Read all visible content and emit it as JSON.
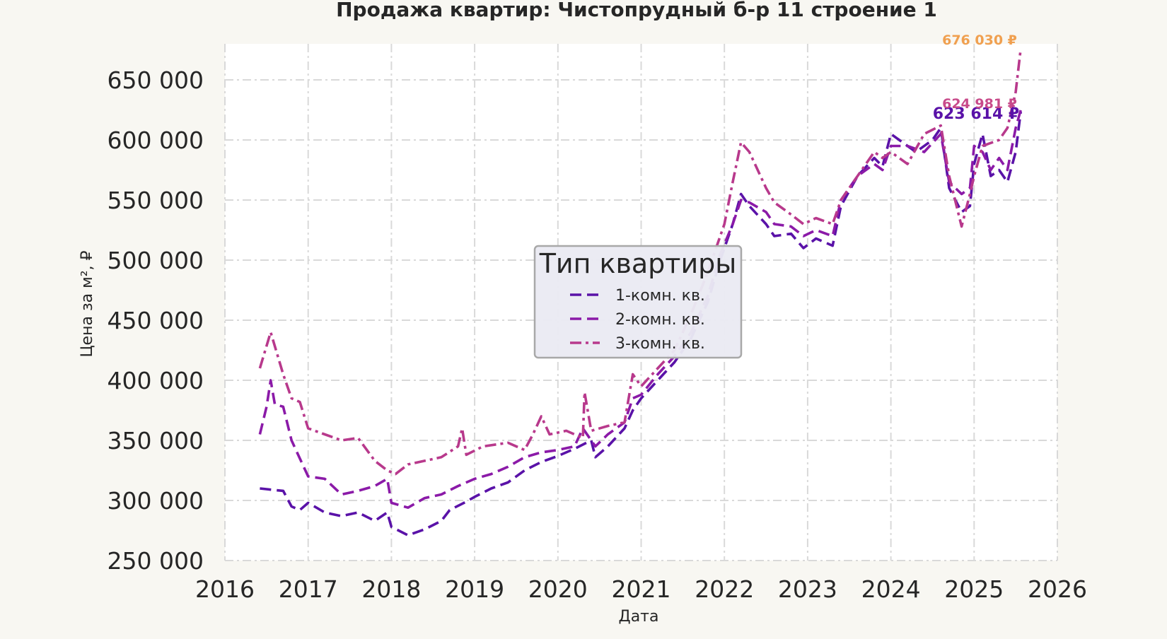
{
  "chart_data": {
    "type": "line",
    "title": "Продажа квартир: Чистопрудный б-р 11 строение 1",
    "xlabel": "Дата",
    "ylabel": "Цена за м², ₽",
    "xlim": [
      2016.0,
      2026.0
    ],
    "ylim": [
      250000,
      680000
    ],
    "x_ticks": [
      2016,
      2017,
      2018,
      2019,
      2020,
      2021,
      2022,
      2023,
      2024,
      2025,
      2026
    ],
    "x_tick_labels": [
      "2016",
      "2017",
      "2018",
      "2019",
      "2020",
      "2021",
      "2022",
      "2023",
      "2024",
      "2025",
      "2026"
    ],
    "y_ticks": [
      250000,
      300000,
      350000,
      400000,
      450000,
      500000,
      550000,
      600000,
      650000
    ],
    "y_tick_labels": [
      "250 000",
      "300 000",
      "350 000",
      "400 000",
      "450 000",
      "500 000",
      "550 000",
      "600 000",
      "650 000"
    ],
    "grid": true,
    "legend": {
      "title": "Тип квартиры",
      "placement": "center"
    },
    "series": [
      {
        "name": "1-комн. кв.",
        "color": "#5a12a8",
        "dash": "dashed",
        "end_label": "623 614 ₽",
        "points": [
          [
            2016.42,
            310000
          ],
          [
            2016.55,
            309000
          ],
          [
            2016.7,
            308000
          ],
          [
            2016.8,
            295000
          ],
          [
            2016.9,
            292000
          ],
          [
            2017.0,
            298000
          ],
          [
            2017.2,
            290000
          ],
          [
            2017.4,
            287000
          ],
          [
            2017.6,
            290000
          ],
          [
            2017.8,
            283000
          ],
          [
            2017.95,
            290000
          ],
          [
            2018.0,
            278000
          ],
          [
            2018.2,
            271000
          ],
          [
            2018.4,
            276000
          ],
          [
            2018.6,
            283000
          ],
          [
            2018.7,
            292000
          ],
          [
            2018.9,
            299000
          ],
          [
            2019.0,
            303000
          ],
          [
            2019.2,
            310000
          ],
          [
            2019.4,
            315000
          ],
          [
            2019.6,
            325000
          ],
          [
            2019.8,
            332000
          ],
          [
            2020.0,
            337000
          ],
          [
            2020.2,
            343000
          ],
          [
            2020.4,
            350000
          ],
          [
            2020.45,
            336000
          ],
          [
            2020.6,
            345000
          ],
          [
            2020.8,
            360000
          ],
          [
            2020.9,
            375000
          ],
          [
            2021.0,
            385000
          ],
          [
            2021.2,
            400000
          ],
          [
            2021.4,
            415000
          ],
          [
            2021.6,
            435000
          ],
          [
            2021.8,
            465000
          ],
          [
            2021.95,
            500000
          ],
          [
            2022.1,
            530000
          ],
          [
            2022.2,
            555000
          ],
          [
            2022.3,
            545000
          ],
          [
            2022.5,
            530000
          ],
          [
            2022.6,
            520000
          ],
          [
            2022.8,
            522000
          ],
          [
            2022.95,
            510000
          ],
          [
            2023.1,
            518000
          ],
          [
            2023.3,
            512000
          ],
          [
            2023.4,
            545000
          ],
          [
            2023.6,
            570000
          ],
          [
            2023.8,
            585000
          ],
          [
            2023.9,
            578000
          ],
          [
            2024.0,
            605000
          ],
          [
            2024.1,
            600000
          ],
          [
            2024.3,
            590000
          ],
          [
            2024.5,
            600000
          ],
          [
            2024.6,
            610000
          ],
          [
            2024.7,
            560000
          ],
          [
            2024.85,
            540000
          ],
          [
            2024.95,
            545000
          ],
          [
            2025.0,
            580000
          ],
          [
            2025.1,
            605000
          ],
          [
            2025.2,
            570000
          ],
          [
            2025.3,
            575000
          ],
          [
            2025.4,
            565000
          ],
          [
            2025.5,
            590000
          ],
          [
            2025.56,
            623614
          ]
        ]
      },
      {
        "name": "2-комн. кв.",
        "color": "#8b1aa8",
        "dash": "dashed",
        "end_label": "624 981 ₽",
        "points": [
          [
            2016.42,
            355000
          ],
          [
            2016.5,
            378000
          ],
          [
            2016.55,
            400000
          ],
          [
            2016.6,
            380000
          ],
          [
            2016.7,
            378000
          ],
          [
            2016.8,
            350000
          ],
          [
            2016.9,
            335000
          ],
          [
            2017.0,
            320000
          ],
          [
            2017.2,
            318000
          ],
          [
            2017.4,
            305000
          ],
          [
            2017.6,
            308000
          ],
          [
            2017.8,
            312000
          ],
          [
            2017.95,
            318000
          ],
          [
            2018.0,
            298000
          ],
          [
            2018.2,
            294000
          ],
          [
            2018.4,
            302000
          ],
          [
            2018.6,
            305000
          ],
          [
            2018.8,
            312000
          ],
          [
            2019.0,
            318000
          ],
          [
            2019.2,
            322000
          ],
          [
            2019.4,
            328000
          ],
          [
            2019.6,
            336000
          ],
          [
            2019.8,
            340000
          ],
          [
            2020.0,
            342000
          ],
          [
            2020.2,
            345000
          ],
          [
            2020.3,
            360000
          ],
          [
            2020.45,
            345000
          ],
          [
            2020.6,
            355000
          ],
          [
            2020.8,
            365000
          ],
          [
            2020.9,
            385000
          ],
          [
            2021.0,
            388000
          ],
          [
            2021.2,
            405000
          ],
          [
            2021.4,
            420000
          ],
          [
            2021.6,
            440000
          ],
          [
            2021.8,
            470000
          ],
          [
            2021.95,
            505000
          ],
          [
            2022.1,
            530000
          ],
          [
            2022.2,
            550000
          ],
          [
            2022.3,
            548000
          ],
          [
            2022.5,
            540000
          ],
          [
            2022.6,
            530000
          ],
          [
            2022.8,
            528000
          ],
          [
            2022.95,
            520000
          ],
          [
            2023.1,
            525000
          ],
          [
            2023.3,
            520000
          ],
          [
            2023.4,
            550000
          ],
          [
            2023.6,
            570000
          ],
          [
            2023.8,
            580000
          ],
          [
            2023.9,
            575000
          ],
          [
            2024.0,
            595000
          ],
          [
            2024.2,
            595000
          ],
          [
            2024.4,
            590000
          ],
          [
            2024.6,
            605000
          ],
          [
            2024.7,
            565000
          ],
          [
            2024.85,
            555000
          ],
          [
            2024.95,
            560000
          ],
          [
            2025.0,
            595000
          ],
          [
            2025.1,
            590000
          ],
          [
            2025.2,
            575000
          ],
          [
            2025.3,
            585000
          ],
          [
            2025.4,
            575000
          ],
          [
            2025.5,
            610000
          ],
          [
            2025.56,
            624981
          ]
        ]
      },
      {
        "name": "3-комн. кв.",
        "color": "#b8398c",
        "dash": "dashdot",
        "end_label": "676 030 ₽",
        "points": [
          [
            2016.42,
            410000
          ],
          [
            2016.55,
            440000
          ],
          [
            2016.7,
            405000
          ],
          [
            2016.8,
            385000
          ],
          [
            2016.9,
            382000
          ],
          [
            2017.0,
            360000
          ],
          [
            2017.2,
            355000
          ],
          [
            2017.4,
            350000
          ],
          [
            2017.6,
            352000
          ],
          [
            2017.8,
            333000
          ],
          [
            2017.95,
            325000
          ],
          [
            2018.05,
            322000
          ],
          [
            2018.2,
            330000
          ],
          [
            2018.4,
            333000
          ],
          [
            2018.6,
            336000
          ],
          [
            2018.8,
            345000
          ],
          [
            2018.85,
            360000
          ],
          [
            2018.9,
            338000
          ],
          [
            2019.1,
            345000
          ],
          [
            2019.4,
            348000
          ],
          [
            2019.6,
            342000
          ],
          [
            2019.7,
            355000
          ],
          [
            2019.8,
            370000
          ],
          [
            2019.9,
            355000
          ],
          [
            2020.1,
            358000
          ],
          [
            2020.3,
            352000
          ],
          [
            2020.32,
            390000
          ],
          [
            2020.4,
            358000
          ],
          [
            2020.6,
            362000
          ],
          [
            2020.8,
            365000
          ],
          [
            2020.9,
            405000
          ],
          [
            2021.0,
            395000
          ],
          [
            2021.2,
            410000
          ],
          [
            2021.4,
            425000
          ],
          [
            2021.6,
            455000
          ],
          [
            2021.8,
            490000
          ],
          [
            2022.0,
            530000
          ],
          [
            2022.1,
            565000
          ],
          [
            2022.2,
            598000
          ],
          [
            2022.3,
            590000
          ],
          [
            2022.5,
            560000
          ],
          [
            2022.6,
            548000
          ],
          [
            2022.8,
            538000
          ],
          [
            2022.95,
            530000
          ],
          [
            2023.1,
            535000
          ],
          [
            2023.3,
            530000
          ],
          [
            2023.4,
            550000
          ],
          [
            2023.6,
            570000
          ],
          [
            2023.8,
            590000
          ],
          [
            2023.9,
            585000
          ],
          [
            2024.0,
            590000
          ],
          [
            2024.2,
            580000
          ],
          [
            2024.4,
            605000
          ],
          [
            2024.6,
            612000
          ],
          [
            2024.7,
            570000
          ],
          [
            2024.85,
            528000
          ],
          [
            2024.95,
            555000
          ],
          [
            2025.0,
            570000
          ],
          [
            2025.1,
            595000
          ],
          [
            2025.3,
            600000
          ],
          [
            2025.4,
            610000
          ],
          [
            2025.5,
            640000
          ],
          [
            2025.56,
            676030
          ]
        ]
      }
    ]
  }
}
